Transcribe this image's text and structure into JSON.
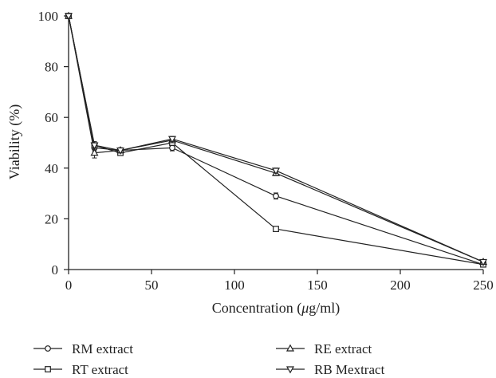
{
  "chart_data": {
    "type": "line",
    "xlabel_prefix": "Concentration (",
    "xlabel_unit_symbol": "μ",
    "xlabel_suffix": "g/ml)",
    "ylabel": "Viability (%)",
    "xlim": [
      0,
      250
    ],
    "ylim": [
      0,
      100
    ],
    "xticks": [
      "0",
      "50",
      "100",
      "150",
      "200",
      "250"
    ],
    "yticks": [
      "0",
      "20",
      "40",
      "60",
      "80",
      "100"
    ],
    "x": [
      0,
      15.6,
      31.25,
      62.5,
      125,
      250
    ],
    "series": [
      {
        "name": "RM extract",
        "marker": "circle",
        "values": [
          100,
          48,
          47,
          48,
          29,
          2
        ],
        "errors": [
          0,
          1.2,
          0.8,
          1.2,
          1.2,
          0.5
        ]
      },
      {
        "name": "RT extract",
        "marker": "square",
        "values": [
          100,
          49,
          46,
          50,
          16,
          2
        ],
        "errors": [
          0,
          1.0,
          0.8,
          1.0,
          0.5,
          0.5
        ]
      },
      {
        "name": "RE extract",
        "marker": "triangle-up",
        "values": [
          100,
          46,
          47,
          51,
          38,
          3
        ],
        "errors": [
          0,
          2.0,
          1.0,
          1.0,
          1.0,
          0.5
        ]
      },
      {
        "name": "RB Mextract",
        "marker": "triangle-down",
        "values": [
          100,
          49,
          47,
          51.5,
          39,
          3
        ],
        "errors": [
          0,
          1.5,
          1.0,
          1.0,
          1.0,
          0.5
        ]
      }
    ],
    "grid": false,
    "legend_position": "bottom"
  }
}
